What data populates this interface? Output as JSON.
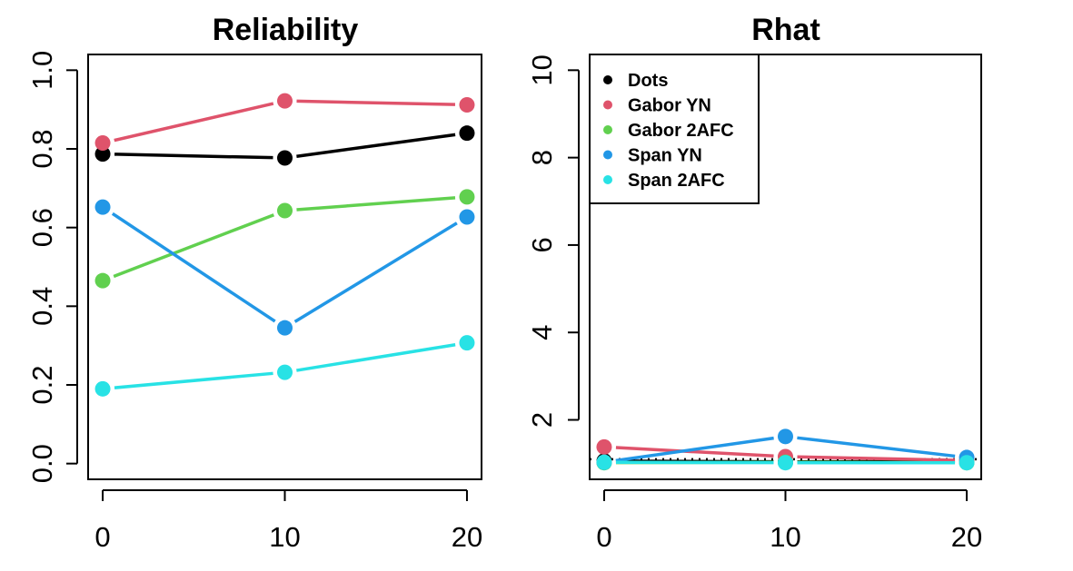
{
  "chart_data": [
    {
      "type": "line",
      "title": "Reliability",
      "xlabel": "",
      "ylabel": "",
      "x": [
        0,
        10,
        20
      ],
      "xticks": [
        "0",
        "10",
        "20"
      ],
      "xlim": [
        -0.8,
        20.8
      ],
      "ylim": [
        -0.04,
        1.04
      ],
      "yticks": [
        "0.0",
        "0.2",
        "0.4",
        "0.6",
        "0.8",
        "1.0"
      ],
      "ytick_values": [
        0,
        0.2,
        0.4,
        0.6,
        0.8,
        1.0
      ],
      "legend": "none",
      "grid": false,
      "series": [
        {
          "color": "#000000",
          "values": [
            0.787,
            0.777,
            0.84
          ]
        },
        {
          "color": "#DF536B",
          "values": [
            0.815,
            0.922,
            0.912
          ]
        },
        {
          "color": "#61D04F",
          "values": [
            0.465,
            0.643,
            0.678
          ]
        },
        {
          "color": "#2297E6",
          "values": [
            0.652,
            0.345,
            0.627
          ]
        },
        {
          "color": "#28E2E5",
          "values": [
            0.19,
            0.232,
            0.307
          ]
        }
      ]
    },
    {
      "type": "line",
      "title": "Rhat",
      "xlabel": "",
      "ylabel": "",
      "x": [
        0,
        10,
        20
      ],
      "xticks": [
        "0",
        "10",
        "20"
      ],
      "xlim": [
        -0.8,
        20.8
      ],
      "ylim": [
        0.64,
        10.36
      ],
      "yticks": [
        "2",
        "4",
        "6",
        "8",
        "10"
      ],
      "ytick_values": [
        2,
        4,
        6,
        8,
        10
      ],
      "reference_line": 1.1,
      "legend": "top-left",
      "grid": false,
      "series": [
        {
          "name": "Dots",
          "color": "#000000",
          "values": [
            1.06,
            1.04,
            1.05
          ]
        },
        {
          "name": "Gabor YN",
          "color": "#DF536B",
          "values": [
            1.38,
            1.16,
            1.07
          ]
        },
        {
          "name": "Gabor 2AFC",
          "color": "#61D04F",
          "values": [
            1.02,
            1.03,
            1.02
          ]
        },
        {
          "name": "Span YN",
          "color": "#2297E6",
          "values": [
            1.03,
            1.62,
            1.14
          ]
        },
        {
          "name": "Span 2AFC",
          "color": "#28E2E5",
          "values": [
            1.03,
            1.02,
            1.02
          ]
        }
      ]
    }
  ]
}
